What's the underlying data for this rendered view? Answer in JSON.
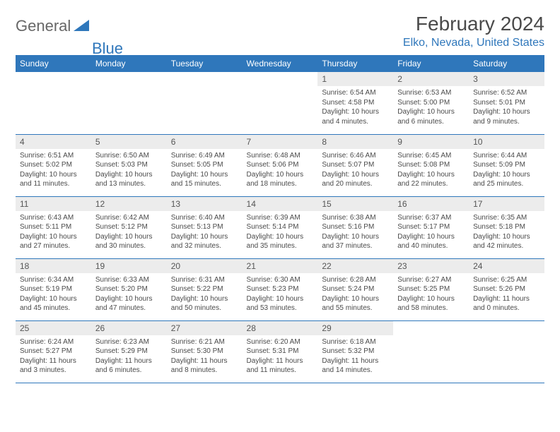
{
  "brand": {
    "part1": "General",
    "part2": "Blue"
  },
  "title": "February 2024",
  "location": "Elko, Nevada, United States",
  "colors": {
    "accent": "#2f77bb",
    "header_text": "#ffffff",
    "daynum_bg": "#ececec",
    "body_text": "#4a4a4a"
  },
  "weekdays": [
    "Sunday",
    "Monday",
    "Tuesday",
    "Wednesday",
    "Thursday",
    "Friday",
    "Saturday"
  ],
  "weeks": [
    [
      null,
      null,
      null,
      null,
      {
        "n": "1",
        "sr": "6:54 AM",
        "ss": "4:58 PM",
        "dl": "10 hours and 4 minutes."
      },
      {
        "n": "2",
        "sr": "6:53 AM",
        "ss": "5:00 PM",
        "dl": "10 hours and 6 minutes."
      },
      {
        "n": "3",
        "sr": "6:52 AM",
        "ss": "5:01 PM",
        "dl": "10 hours and 9 minutes."
      }
    ],
    [
      {
        "n": "4",
        "sr": "6:51 AM",
        "ss": "5:02 PM",
        "dl": "10 hours and 11 minutes."
      },
      {
        "n": "5",
        "sr": "6:50 AM",
        "ss": "5:03 PM",
        "dl": "10 hours and 13 minutes."
      },
      {
        "n": "6",
        "sr": "6:49 AM",
        "ss": "5:05 PM",
        "dl": "10 hours and 15 minutes."
      },
      {
        "n": "7",
        "sr": "6:48 AM",
        "ss": "5:06 PM",
        "dl": "10 hours and 18 minutes."
      },
      {
        "n": "8",
        "sr": "6:46 AM",
        "ss": "5:07 PM",
        "dl": "10 hours and 20 minutes."
      },
      {
        "n": "9",
        "sr": "6:45 AM",
        "ss": "5:08 PM",
        "dl": "10 hours and 22 minutes."
      },
      {
        "n": "10",
        "sr": "6:44 AM",
        "ss": "5:09 PM",
        "dl": "10 hours and 25 minutes."
      }
    ],
    [
      {
        "n": "11",
        "sr": "6:43 AM",
        "ss": "5:11 PM",
        "dl": "10 hours and 27 minutes."
      },
      {
        "n": "12",
        "sr": "6:42 AM",
        "ss": "5:12 PM",
        "dl": "10 hours and 30 minutes."
      },
      {
        "n": "13",
        "sr": "6:40 AM",
        "ss": "5:13 PM",
        "dl": "10 hours and 32 minutes."
      },
      {
        "n": "14",
        "sr": "6:39 AM",
        "ss": "5:14 PM",
        "dl": "10 hours and 35 minutes."
      },
      {
        "n": "15",
        "sr": "6:38 AM",
        "ss": "5:16 PM",
        "dl": "10 hours and 37 minutes."
      },
      {
        "n": "16",
        "sr": "6:37 AM",
        "ss": "5:17 PM",
        "dl": "10 hours and 40 minutes."
      },
      {
        "n": "17",
        "sr": "6:35 AM",
        "ss": "5:18 PM",
        "dl": "10 hours and 42 minutes."
      }
    ],
    [
      {
        "n": "18",
        "sr": "6:34 AM",
        "ss": "5:19 PM",
        "dl": "10 hours and 45 minutes."
      },
      {
        "n": "19",
        "sr": "6:33 AM",
        "ss": "5:20 PM",
        "dl": "10 hours and 47 minutes."
      },
      {
        "n": "20",
        "sr": "6:31 AM",
        "ss": "5:22 PM",
        "dl": "10 hours and 50 minutes."
      },
      {
        "n": "21",
        "sr": "6:30 AM",
        "ss": "5:23 PM",
        "dl": "10 hours and 53 minutes."
      },
      {
        "n": "22",
        "sr": "6:28 AM",
        "ss": "5:24 PM",
        "dl": "10 hours and 55 minutes."
      },
      {
        "n": "23",
        "sr": "6:27 AM",
        "ss": "5:25 PM",
        "dl": "10 hours and 58 minutes."
      },
      {
        "n": "24",
        "sr": "6:25 AM",
        "ss": "5:26 PM",
        "dl": "11 hours and 0 minutes."
      }
    ],
    [
      {
        "n": "25",
        "sr": "6:24 AM",
        "ss": "5:27 PM",
        "dl": "11 hours and 3 minutes."
      },
      {
        "n": "26",
        "sr": "6:23 AM",
        "ss": "5:29 PM",
        "dl": "11 hours and 6 minutes."
      },
      {
        "n": "27",
        "sr": "6:21 AM",
        "ss": "5:30 PM",
        "dl": "11 hours and 8 minutes."
      },
      {
        "n": "28",
        "sr": "6:20 AM",
        "ss": "5:31 PM",
        "dl": "11 hours and 11 minutes."
      },
      {
        "n": "29",
        "sr": "6:18 AM",
        "ss": "5:32 PM",
        "dl": "11 hours and 14 minutes."
      },
      null,
      null
    ]
  ],
  "labels": {
    "sunrise": "Sunrise:",
    "sunset": "Sunset:",
    "daylight": "Daylight:"
  }
}
